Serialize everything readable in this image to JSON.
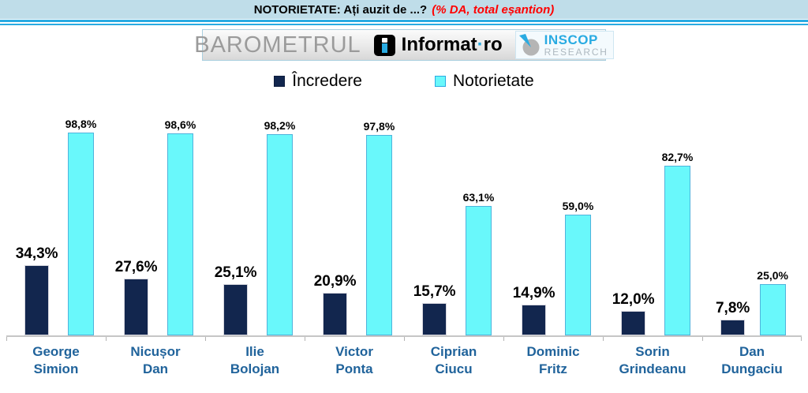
{
  "header": {
    "title_main": "NOTORIETATE: Ați auzit de ...?",
    "title_note": "(% DA, total eșantion)"
  },
  "logos": {
    "barometrul": "BAROMETRUL",
    "informat_name": "Informat",
    "informat_dot": "·",
    "informat_tld": "ro",
    "inscop_name": "INSCOP",
    "inscop_sub": "RESEARCH"
  },
  "colors": {
    "accent_blue": "#29abe2",
    "header_band": "#bfdde9",
    "title_note_red": "#ff0000",
    "incredere_bar": "#12264e",
    "notorietate_bar": "#69f8fb",
    "notorietate_border": "#4fb3dc",
    "category_label": "#20639b"
  },
  "chart_data": {
    "type": "bar",
    "title": "NOTORIETATE: Ați auzit de ...? (% DA, total eșantion)",
    "categories": [
      "George Simion",
      "Nicușor Dan",
      "Ilie Bolojan",
      "Victor Ponta",
      "Ciprian Ciucu",
      "Dominic Fritz",
      "Sorin Grindeanu",
      "Dan Dungaciu"
    ],
    "series": [
      {
        "name": "Încredere",
        "color": "#12264e",
        "values": [
          34.3,
          27.6,
          25.1,
          20.9,
          15.7,
          14.9,
          12.0,
          7.8
        ],
        "labels": [
          "34,3%",
          "27,6%",
          "25,1%",
          "20,9%",
          "15,7%",
          "14,9%",
          "12,0%",
          "7,8%"
        ]
      },
      {
        "name": "Notorietate",
        "color": "#69f8fb",
        "values": [
          98.8,
          98.6,
          98.2,
          97.8,
          63.1,
          59.0,
          82.7,
          25.0
        ],
        "labels": [
          "98,8%",
          "98,6%",
          "98,2%",
          "97,8%",
          "63,1%",
          "59,0%",
          "82,7%",
          "25,0%"
        ]
      }
    ],
    "ylim": [
      0,
      100
    ],
    "grid": false,
    "legend_position": "top",
    "value_format": "percent-comma-decimal"
  }
}
